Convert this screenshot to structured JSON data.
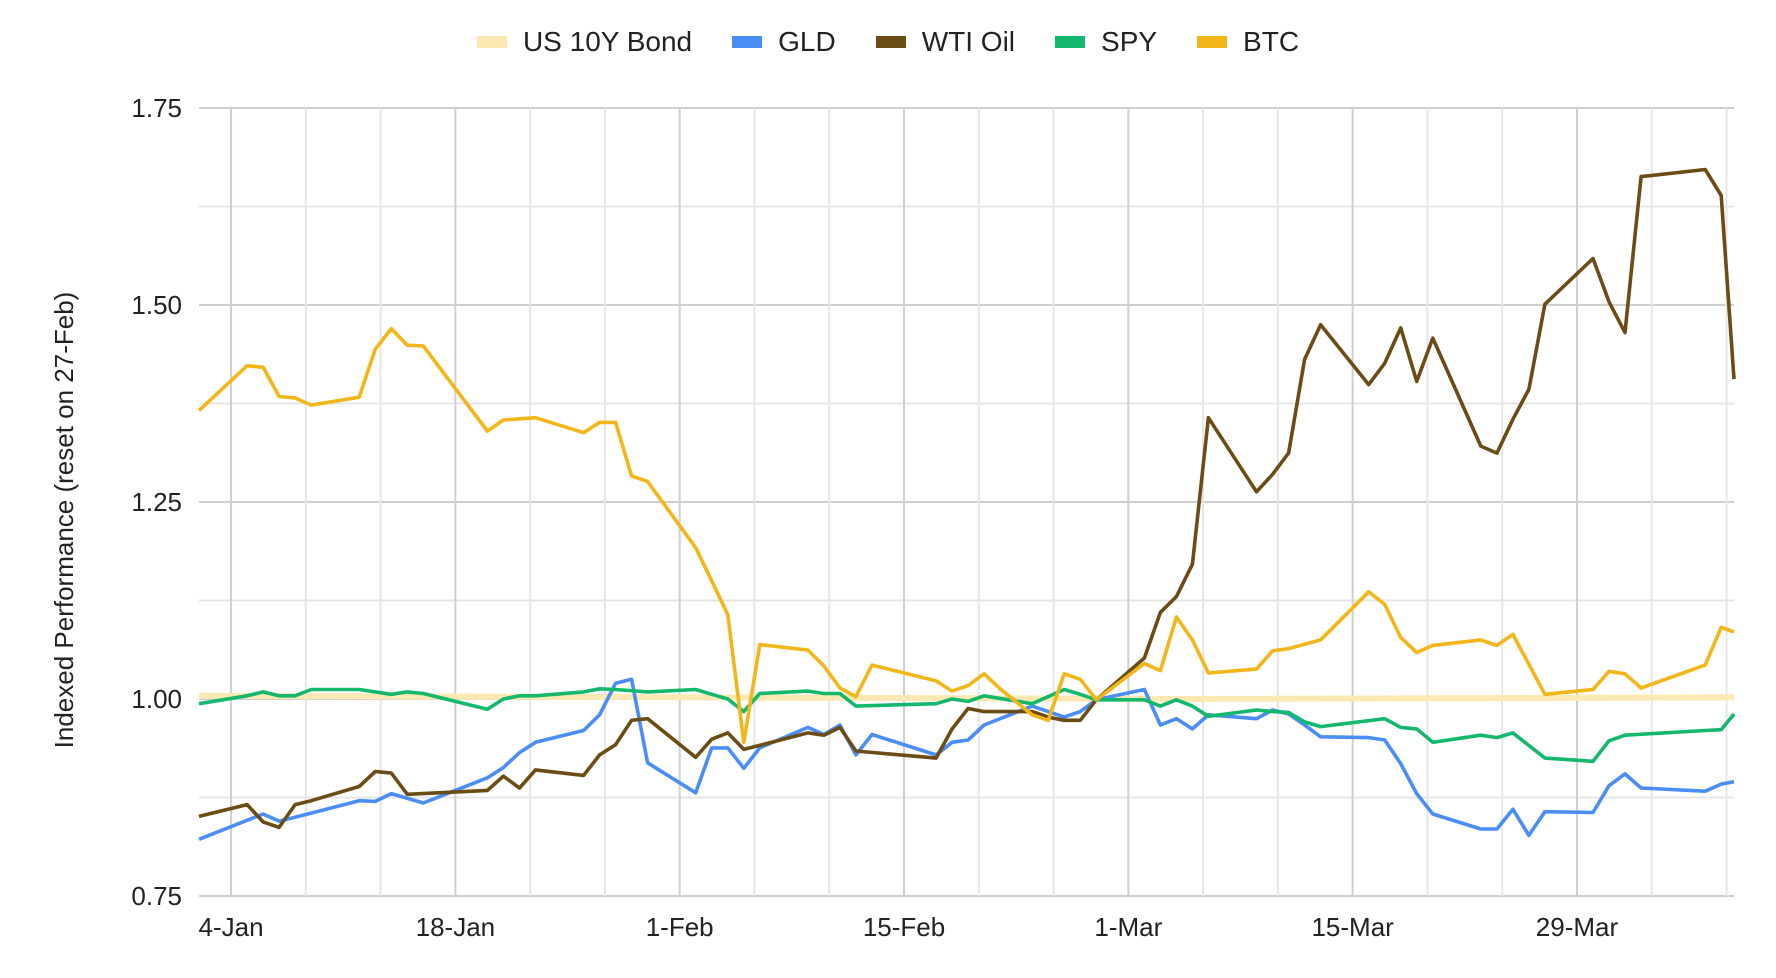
{
  "chart_data": {
    "type": "line",
    "title": "",
    "xlabel": "",
    "ylabel": "Indexed Performance (reset on 27-Feb)",
    "x_unit": "days since 4-Jan",
    "xlim": [
      -2,
      93.8
    ],
    "ylim": [
      0.75,
      1.75
    ],
    "yticks": [
      {
        "value": 0.75,
        "label": "0.75"
      },
      {
        "value": 1.0,
        "label": "1.00"
      },
      {
        "value": 1.25,
        "label": "1.25"
      },
      {
        "value": 1.5,
        "label": "1.50"
      },
      {
        "value": 1.75,
        "label": "1.75"
      }
    ],
    "xticks": [
      {
        "value": 0,
        "label": "4-Jan"
      },
      {
        "value": 14,
        "label": "18-Jan"
      },
      {
        "value": 28,
        "label": "1-Feb"
      },
      {
        "value": 42,
        "label": "15-Feb"
      },
      {
        "value": 56,
        "label": "1-Mar"
      },
      {
        "value": 70,
        "label": "15-Mar"
      },
      {
        "value": 84,
        "label": "29-Mar"
      }
    ],
    "grid": true,
    "legend_position": "top",
    "series": [
      {
        "name": "US 10Y Bond",
        "color": "#fce8b2",
        "points": [
          [
            -2,
            1.004
          ],
          [
            30,
            1.002
          ],
          [
            60,
            1.0
          ],
          [
            93.8,
            1.002
          ]
        ]
      },
      {
        "name": "GLD",
        "color": "#4a8ef5",
        "points": [
          [
            -2,
            0.822
          ],
          [
            2,
            0.854
          ],
          [
            3,
            0.845
          ],
          [
            4,
            0.85
          ],
          [
            8,
            0.871
          ],
          [
            9,
            0.87
          ],
          [
            10,
            0.88
          ],
          [
            12,
            0.868
          ],
          [
            16,
            0.9
          ],
          [
            17,
            0.913
          ],
          [
            18,
            0.932
          ],
          [
            19,
            0.945
          ],
          [
            22,
            0.96
          ],
          [
            23,
            0.98
          ],
          [
            24,
            1.02
          ],
          [
            25,
            1.025
          ],
          [
            26,
            0.919
          ],
          [
            29,
            0.881
          ],
          [
            30,
            0.938
          ],
          [
            31,
            0.938
          ],
          [
            32,
            0.912
          ],
          [
            33,
            0.938
          ],
          [
            36,
            0.964
          ],
          [
            37,
            0.955
          ],
          [
            38,
            0.967
          ],
          [
            39,
            0.929
          ],
          [
            40,
            0.955
          ],
          [
            44,
            0.929
          ],
          [
            45,
            0.945
          ],
          [
            46,
            0.948
          ],
          [
            47,
            0.967
          ],
          [
            50,
            0.991
          ],
          [
            51,
            0.984
          ],
          [
            52,
            0.977
          ],
          [
            53,
            0.984
          ],
          [
            54,
            0.999
          ],
          [
            57,
            1.012
          ],
          [
            58,
            0.967
          ],
          [
            59,
            0.975
          ],
          [
            60,
            0.962
          ],
          [
            61,
            0.98
          ],
          [
            64,
            0.975
          ],
          [
            65,
            0.986
          ],
          [
            66,
            0.981
          ],
          [
            67,
            0.967
          ],
          [
            68,
            0.952
          ],
          [
            71,
            0.951
          ],
          [
            72,
            0.948
          ],
          [
            73,
            0.918
          ],
          [
            74,
            0.88
          ],
          [
            75,
            0.854
          ],
          [
            78,
            0.835
          ],
          [
            79,
            0.835
          ],
          [
            80,
            0.86
          ],
          [
            81,
            0.827
          ],
          [
            82,
            0.857
          ],
          [
            85,
            0.856
          ],
          [
            86,
            0.89
          ],
          [
            87,
            0.905
          ],
          [
            88,
            0.887
          ],
          [
            92,
            0.883
          ],
          [
            93,
            0.892
          ],
          [
            93.8,
            0.895
          ]
        ]
      },
      {
        "name": "WTI Oil",
        "color": "#6b4c14",
        "points": [
          [
            -2,
            0.851
          ],
          [
            1,
            0.866
          ],
          [
            2,
            0.844
          ],
          [
            3,
            0.837
          ],
          [
            4,
            0.866
          ],
          [
            5,
            0.871
          ],
          [
            8,
            0.889
          ],
          [
            9,
            0.908
          ],
          [
            10,
            0.906
          ],
          [
            11,
            0.879
          ],
          [
            16,
            0.884
          ],
          [
            17,
            0.902
          ],
          [
            18,
            0.887
          ],
          [
            19,
            0.91
          ],
          [
            22,
            0.903
          ],
          [
            23,
            0.929
          ],
          [
            24,
            0.942
          ],
          [
            25,
            0.973
          ],
          [
            26,
            0.975
          ],
          [
            29,
            0.926
          ],
          [
            30,
            0.949
          ],
          [
            31,
            0.957
          ],
          [
            32,
            0.936
          ],
          [
            36,
            0.957
          ],
          [
            37,
            0.954
          ],
          [
            38,
            0.964
          ],
          [
            39,
            0.934
          ],
          [
            44,
            0.925
          ],
          [
            45,
            0.962
          ],
          [
            46,
            0.988
          ],
          [
            47,
            0.984
          ],
          [
            50,
            0.984
          ],
          [
            51,
            0.977
          ],
          [
            52,
            0.973
          ],
          [
            53,
            0.973
          ],
          [
            54,
            0.999
          ],
          [
            57,
            1.052
          ],
          [
            58,
            1.11
          ],
          [
            59,
            1.13
          ],
          [
            60,
            1.171
          ],
          [
            61,
            1.357
          ],
          [
            64,
            1.263
          ],
          [
            65,
            1.285
          ],
          [
            66,
            1.312
          ],
          [
            67,
            1.431
          ],
          [
            68,
            1.475
          ],
          [
            71,
            1.399
          ],
          [
            72,
            1.426
          ],
          [
            73,
            1.471
          ],
          [
            74,
            1.403
          ],
          [
            75,
            1.458
          ],
          [
            78,
            1.321
          ],
          [
            79,
            1.312
          ],
          [
            80,
            1.355
          ],
          [
            81,
            1.393
          ],
          [
            82,
            1.501
          ],
          [
            85,
            1.559
          ],
          [
            86,
            1.504
          ],
          [
            87,
            1.465
          ],
          [
            88,
            1.663
          ],
          [
            92,
            1.672
          ],
          [
            93,
            1.639
          ],
          [
            93.8,
            1.406
          ]
        ]
      },
      {
        "name": "SPY",
        "color": "#14b86c",
        "points": [
          [
            -2,
            0.994
          ],
          [
            1,
            1.004
          ],
          [
            2,
            1.009
          ],
          [
            3,
            1.004
          ],
          [
            4,
            1.004
          ],
          [
            5,
            1.012
          ],
          [
            8,
            1.012
          ],
          [
            10,
            1.006
          ],
          [
            11,
            1.009
          ],
          [
            12,
            1.007
          ],
          [
            16,
            0.987
          ],
          [
            17,
            1.0
          ],
          [
            18,
            1.004
          ],
          [
            19,
            1.004
          ],
          [
            22,
            1.009
          ],
          [
            23,
            1.013
          ],
          [
            24,
            1.012
          ],
          [
            26,
            1.009
          ],
          [
            29,
            1.012
          ],
          [
            30,
            1.006
          ],
          [
            31,
            1.0
          ],
          [
            32,
            0.984
          ],
          [
            33,
            1.007
          ],
          [
            36,
            1.01
          ],
          [
            37,
            1.007
          ],
          [
            38,
            1.007
          ],
          [
            39,
            0.991
          ],
          [
            44,
            0.994
          ],
          [
            45,
            1.0
          ],
          [
            46,
            0.997
          ],
          [
            47,
            1.004
          ],
          [
            50,
            0.994
          ],
          [
            51,
            1.003
          ],
          [
            52,
            1.012
          ],
          [
            53,
            1.006
          ],
          [
            54,
            0.999
          ],
          [
            57,
            0.999
          ],
          [
            58,
            0.991
          ],
          [
            59,
            0.999
          ],
          [
            60,
            0.991
          ],
          [
            61,
            0.978
          ],
          [
            64,
            0.986
          ],
          [
            65,
            0.984
          ],
          [
            66,
            0.983
          ],
          [
            67,
            0.971
          ],
          [
            68,
            0.965
          ],
          [
            72,
            0.975
          ],
          [
            73,
            0.964
          ],
          [
            74,
            0.962
          ],
          [
            75,
            0.945
          ],
          [
            78,
            0.954
          ],
          [
            79,
            0.951
          ],
          [
            80,
            0.957
          ],
          [
            82,
            0.925
          ],
          [
            85,
            0.921
          ],
          [
            86,
            0.947
          ],
          [
            87,
            0.954
          ],
          [
            92,
            0.96
          ],
          [
            93,
            0.961
          ],
          [
            93.8,
            0.981
          ]
        ]
      },
      {
        "name": "BTC",
        "color": "#f2b619",
        "points": [
          [
            -2,
            1.366
          ],
          [
            1,
            1.423
          ],
          [
            2,
            1.421
          ],
          [
            3,
            1.384
          ],
          [
            4,
            1.382
          ],
          [
            5,
            1.373
          ],
          [
            8,
            1.383
          ],
          [
            9,
            1.444
          ],
          [
            10,
            1.47
          ],
          [
            11,
            1.449
          ],
          [
            12,
            1.448
          ],
          [
            16,
            1.34
          ],
          [
            17,
            1.354
          ],
          [
            19,
            1.357
          ],
          [
            22,
            1.338
          ],
          [
            23,
            1.351
          ],
          [
            24,
            1.351
          ],
          [
            25,
            1.283
          ],
          [
            26,
            1.276
          ],
          [
            29,
            1.192
          ],
          [
            30,
            1.15
          ],
          [
            31,
            1.107
          ],
          [
            32,
            0.945
          ],
          [
            33,
            1.069
          ],
          [
            36,
            1.062
          ],
          [
            37,
            1.042
          ],
          [
            38,
            1.014
          ],
          [
            39,
            1.003
          ],
          [
            40,
            1.043
          ],
          [
            44,
            1.023
          ],
          [
            45,
            1.01
          ],
          [
            46,
            1.017
          ],
          [
            47,
            1.032
          ],
          [
            48,
            1.013
          ],
          [
            50,
            0.98
          ],
          [
            51,
            0.973
          ],
          [
            52,
            1.032
          ],
          [
            53,
            1.025
          ],
          [
            54,
            0.999
          ],
          [
            57,
            1.045
          ],
          [
            58,
            1.036
          ],
          [
            59,
            1.104
          ],
          [
            60,
            1.075
          ],
          [
            61,
            1.033
          ],
          [
            64,
            1.038
          ],
          [
            65,
            1.061
          ],
          [
            66,
            1.064
          ],
          [
            68,
            1.075
          ],
          [
            71,
            1.136
          ],
          [
            72,
            1.12
          ],
          [
            73,
            1.078
          ],
          [
            74,
            1.059
          ],
          [
            75,
            1.068
          ],
          [
            78,
            1.075
          ],
          [
            79,
            1.068
          ],
          [
            80,
            1.082
          ],
          [
            82,
            1.006
          ],
          [
            85,
            1.012
          ],
          [
            86,
            1.035
          ],
          [
            87,
            1.032
          ],
          [
            88,
            1.014
          ],
          [
            92,
            1.043
          ],
          [
            93,
            1.091
          ],
          [
            93.8,
            1.085
          ]
        ]
      }
    ]
  }
}
